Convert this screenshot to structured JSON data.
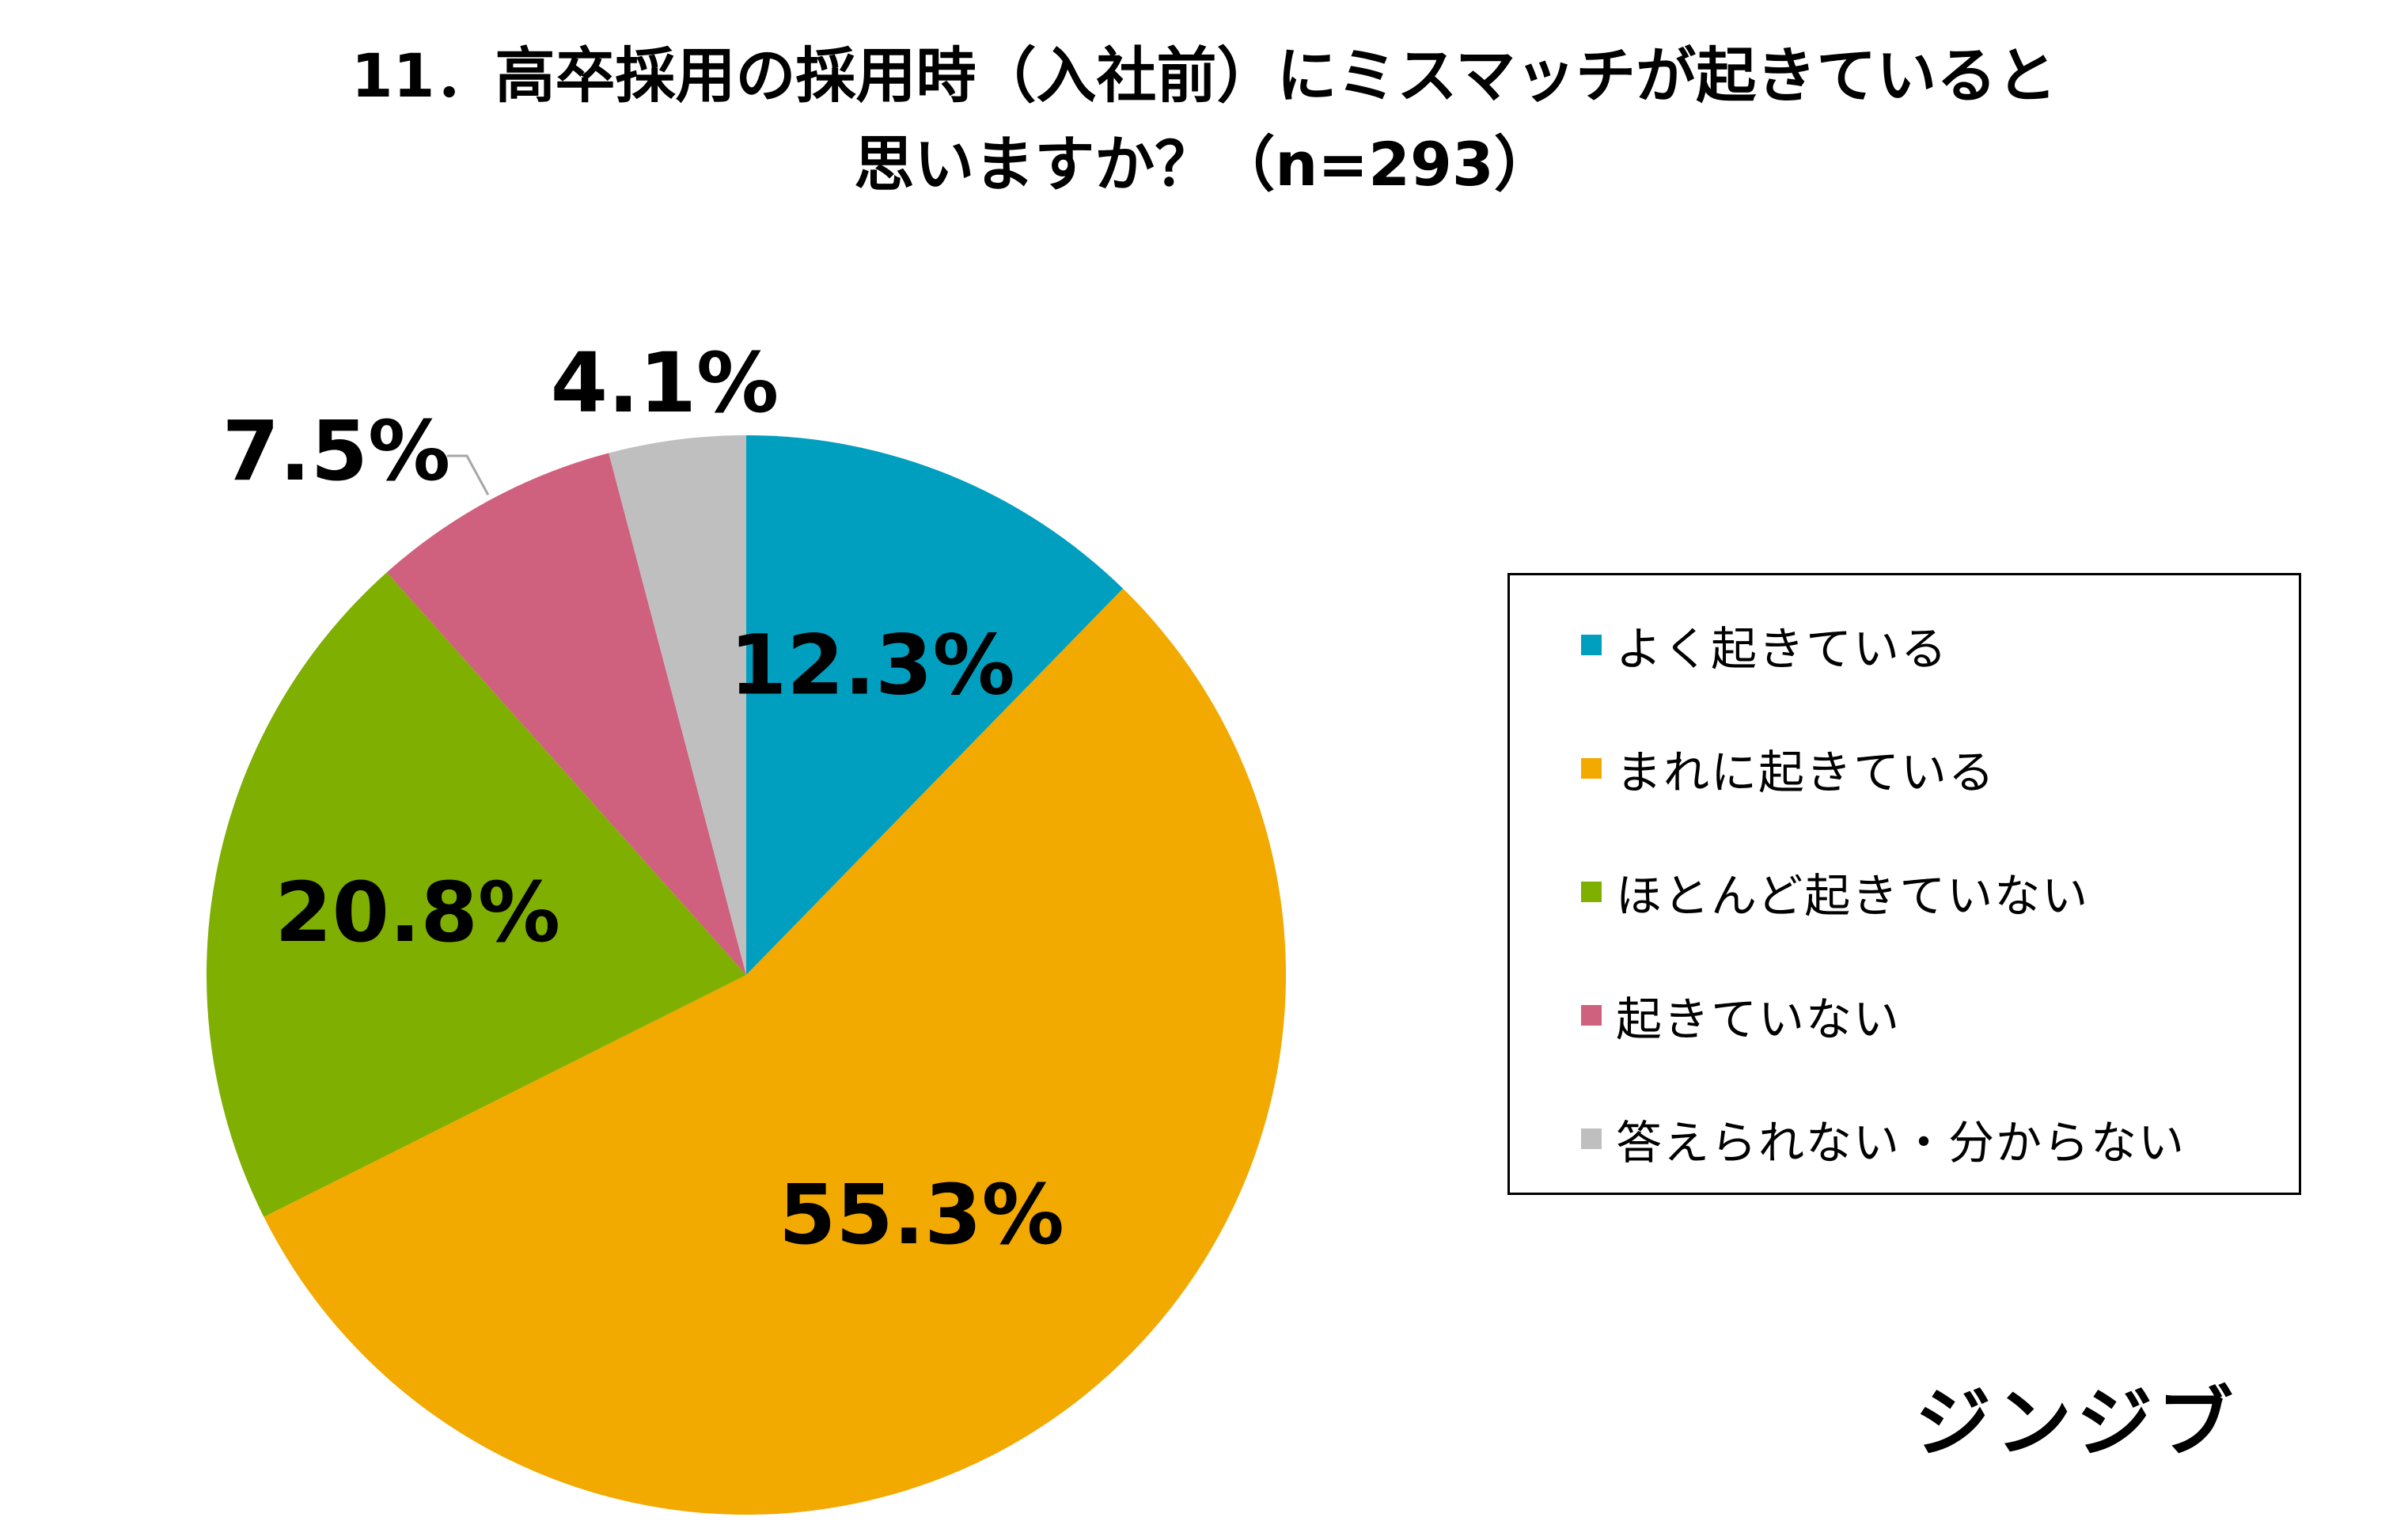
{
  "title": {
    "line1": "11．高卒採用の採用時（入社前）にミスマッチが起きていると",
    "line2": "思いますか？（n=293）"
  },
  "brand": "ジンジブ",
  "chart_data": {
    "type": "pie",
    "start_angle_deg": 0,
    "direction": "clockwise",
    "slices": [
      {
        "name": "よく起きている",
        "value": 12.3,
        "label": "12.3%",
        "color": "#019FBF"
      },
      {
        "name": "まれに起きている",
        "value": 55.3,
        "label": "55.3%",
        "color": "#F2A900"
      },
      {
        "name": "ほとんど起きていない",
        "value": 20.8,
        "label": "20.8%",
        "color": "#7FAF00"
      },
      {
        "name": "起きていない",
        "value": 7.5,
        "label": "7.5%",
        "color": "#CF617F"
      },
      {
        "name": "答えられない・分からない",
        "value": 4.1,
        "label": "4.1%",
        "color": "#BFBFBF"
      }
    ],
    "legend_position": "right"
  }
}
